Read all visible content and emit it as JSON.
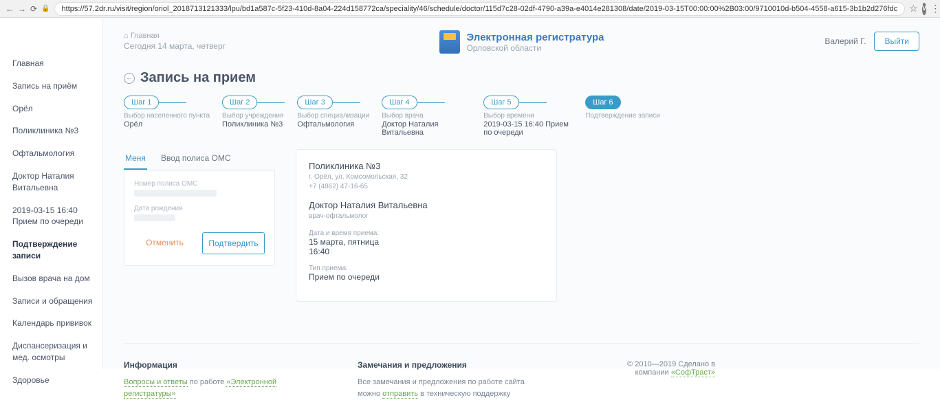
{
  "browser": {
    "url": "https://57.2dr.ru/visit/region/oriol_2018713121333/lpu/bd1a587c-5f23-410d-8a04-224d158772ca/speciality/46/schedule/doctor/115d7c28-02df-4790-a39a-e4014e281308/date/2019-03-15T00:00:00%2B03:00/9710010d-b504-4558-a615-3b1b2d276fdc"
  },
  "header": {
    "home_crumb": "Главная",
    "today": "Сегодня 14 марта, четверг",
    "brand_title": "Электронная регистратура",
    "brand_region": "Орловской области",
    "user": "Валерий Г.",
    "logout": "Выйти"
  },
  "sidebar": {
    "items": [
      {
        "label": "Главная"
      },
      {
        "label": "Запись на приём"
      },
      {
        "label": "Орёл"
      },
      {
        "label": "Поликлиника №3"
      },
      {
        "label": "Офтальмология"
      },
      {
        "label": "Доктор Наталия Витальевна"
      },
      {
        "label": "2019-03-15 16:40 Прием по очереди"
      },
      {
        "label": "Подтверждение записи"
      },
      {
        "label": "Вызов врача на дом"
      },
      {
        "label": "Записи и обращения"
      },
      {
        "label": "Календарь прививок"
      },
      {
        "label": "Диспансеризация и мед. осмотры"
      },
      {
        "label": "Здоровье"
      }
    ],
    "active_index": 7
  },
  "page": {
    "title": "Запись на прием"
  },
  "steps": [
    {
      "pill": "Шаг 1",
      "label": "Выбор населенного пункта",
      "value": "Орёл"
    },
    {
      "pill": "Шаг 2",
      "label": "Выбор учреждения",
      "value": "Поликлиника №3"
    },
    {
      "pill": "Шаг 3",
      "label": "Выбор специализации",
      "value": "Офтальмология"
    },
    {
      "pill": "Шаг 4",
      "label": "Выбор врача",
      "value": "Доктор Наталия Витальевна"
    },
    {
      "pill": "Шаг 5",
      "label": "Выбор времени",
      "value": "2019-03-15 16:40 Прием по очереди"
    },
    {
      "pill": "Шаг 6",
      "label": "Подтверждение записи",
      "value": ""
    }
  ],
  "active_step": 5,
  "form": {
    "tabs": {
      "me": "Меня",
      "oms": "Ввод полиса ОМС"
    },
    "fields": {
      "oms_label": "Номер полиса ОМС",
      "dob_label": "Дата рождения"
    },
    "cancel": "Отменить",
    "confirm": "Подтвердить"
  },
  "info": {
    "clinic": "Поликлиника №3",
    "address": "г. Орёл, ул. Комсомольская, 32",
    "phone": "+7 (4862) 47-16-65",
    "doctor": "Доктор Наталия Витальевна",
    "spec": "врач-офтальмолог",
    "datetime_label": "Дата и время приема:",
    "date": "15 марта, пятница",
    "time": "16:40",
    "type_label": "Тип приема:",
    "type": "Прием по очереди"
  },
  "footer": {
    "info_h": "Информация",
    "info_link1": "Вопросы и ответы",
    "info_txt1": " по работе ",
    "info_link2": "«Электронной регистратуры»",
    "feedback_h": "Замечания и предложения",
    "feedback_txt1": "Все замечания и предложения по работе сайта можно ",
    "feedback_link": "отправить",
    "feedback_txt2": " в техническую поддержку",
    "copy1": "© 2010—2019 ",
    "copy2": "Сделано в компании ",
    "copy_link": "«СофТраст»"
  }
}
